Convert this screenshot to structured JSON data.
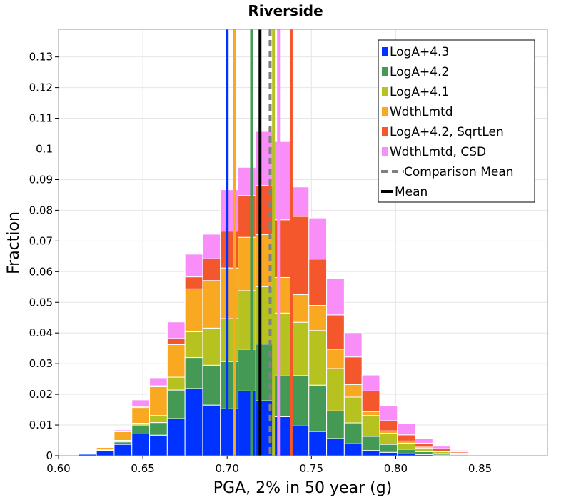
{
  "chart_data": {
    "type": "bar",
    "stacked": true,
    "title": "Riverside",
    "xlabel": "PGA, 2% in 50 year (g)",
    "ylabel": "Fraction",
    "xlim": [
      0.6,
      0.89
    ],
    "ylim": [
      0,
      0.139
    ],
    "grid": true,
    "legend_position": "top-right",
    "bin_width": 0.0105,
    "bin_starts": [
      0.6015,
      0.612,
      0.6225,
      0.633,
      0.6435,
      0.654,
      0.6645,
      0.675,
      0.6855,
      0.696,
      0.7065,
      0.717,
      0.7275,
      0.738,
      0.7485,
      0.759,
      0.7695,
      0.78,
      0.7905,
      0.801,
      0.8115,
      0.822,
      0.8325,
      0.843,
      0.8535,
      0.864,
      0.8745
    ],
    "x_ticks": [
      0.6,
      0.65,
      0.7,
      0.75,
      0.8,
      0.85
    ],
    "x_tick_labels": [
      "0.60",
      "0.65",
      "0.70",
      "0.75",
      "0.80",
      "0.85"
    ],
    "y_ticks": [
      0,
      0.01,
      0.02,
      0.03,
      0.04,
      0.05,
      0.06,
      0.07,
      0.08,
      0.09,
      0.1,
      0.11,
      0.12,
      0.13
    ],
    "y_tick_labels": [
      "0",
      "0.01",
      "0.02",
      "0.03",
      "0.04",
      "0.05",
      "0.06",
      "0.07",
      "0.08",
      "0.09",
      "0.1",
      "0.11",
      "0.12",
      "0.13"
    ],
    "series": [
      {
        "name": "LogA+4.3",
        "color": "#0033ff",
        "values": [
          0.0002,
          0.0005,
          0.0017,
          0.0037,
          0.0071,
          0.0067,
          0.0121,
          0.0219,
          0.0165,
          0.0153,
          0.0211,
          0.0179,
          0.0127,
          0.0097,
          0.0079,
          0.0056,
          0.0039,
          0.0017,
          0.0011,
          0.0006,
          0.0004,
          0.0002,
          0.0001,
          0.0001,
          0.0,
          0.0,
          0.0
        ]
      },
      {
        "name": "LogA+4.2",
        "color": "#449955",
        "values": [
          0.0001,
          0.0002,
          0.0002,
          0.0008,
          0.0029,
          0.0041,
          0.0093,
          0.0101,
          0.013,
          0.0154,
          0.0136,
          0.0185,
          0.0133,
          0.0164,
          0.0151,
          0.009,
          0.0068,
          0.0046,
          0.0026,
          0.0015,
          0.0009,
          0.0005,
          0.0003,
          0.0002,
          0.0001,
          0.0,
          0.0
        ]
      },
      {
        "name": "LogA+4.1",
        "color": "#b5c21f",
        "values": [
          0.0,
          0.0001,
          0.0003,
          0.0005,
          0.0006,
          0.0023,
          0.0042,
          0.0084,
          0.0121,
          0.014,
          0.0191,
          0.0187,
          0.0205,
          0.0174,
          0.0178,
          0.0138,
          0.0084,
          0.0068,
          0.0036,
          0.002,
          0.0011,
          0.0006,
          0.0003,
          0.0002,
          0.0001,
          0.0,
          0.0
        ]
      },
      {
        "name": "WdthLmtd",
        "color": "#f8a821",
        "values": [
          0.0,
          0.0001,
          0.0005,
          0.0028,
          0.0051,
          0.0094,
          0.0106,
          0.014,
          0.0155,
          0.0165,
          0.0174,
          0.017,
          0.0116,
          0.009,
          0.0082,
          0.0063,
          0.0041,
          0.0013,
          0.0008,
          0.0007,
          0.0004,
          0.0002,
          0.0002,
          0.0001,
          0.0,
          0.0,
          0.0
        ]
      },
      {
        "name": "LogA+4.2, SqrtLen",
        "color": "#f4572b",
        "values": [
          0.0,
          0.0,
          0.0002,
          0.0002,
          0.0003,
          0.0003,
          0.002,
          0.0039,
          0.0071,
          0.012,
          0.0136,
          0.016,
          0.0188,
          0.0255,
          0.0151,
          0.0112,
          0.009,
          0.0067,
          0.0033,
          0.002,
          0.0013,
          0.0008,
          0.0004,
          0.0002,
          0.0001,
          0.0,
          0.0
        ]
      },
      {
        "name": "WdthLmtd, CSD",
        "color": "#f98ef8",
        "values": [
          0.0,
          0.0,
          0.0002,
          0.0004,
          0.0022,
          0.0026,
          0.0054,
          0.0074,
          0.008,
          0.0135,
          0.0092,
          0.0176,
          0.0255,
          0.0096,
          0.0134,
          0.0119,
          0.0079,
          0.0052,
          0.005,
          0.0037,
          0.0014,
          0.0008,
          0.0005,
          0.0002,
          0.0001,
          0.0001,
          0.0
        ]
      }
    ],
    "vertical_lines": [
      {
        "name": "LogA+4.3",
        "x": 0.7,
        "color": "#0033ff"
      },
      {
        "name": "WdthLmtd",
        "x": 0.7045,
        "color": "#f8a821"
      },
      {
        "name": "LogA+4.2",
        "x": 0.7145,
        "color": "#449955"
      },
      {
        "name": "Mean",
        "x": 0.7195,
        "color": "#000000"
      },
      {
        "name": "Comparison Mean",
        "x": 0.7255,
        "color": "#808080",
        "dashed": true
      },
      {
        "name": "LogA+4.1",
        "x": 0.7275,
        "color": "#b5c21f"
      },
      {
        "name": "WdthLmtd, CSD",
        "x": 0.7305,
        "color": "#f98ef8"
      },
      {
        "name": "LogA+4.2, SqrtLen",
        "x": 0.738,
        "color": "#f4572b"
      }
    ],
    "legend": [
      {
        "label": "LogA+4.3",
        "kind": "box",
        "color": "#0033ff"
      },
      {
        "label": "LogA+4.2",
        "kind": "box",
        "color": "#449955"
      },
      {
        "label": "LogA+4.1",
        "kind": "box",
        "color": "#b5c21f"
      },
      {
        "label": "WdthLmtd",
        "kind": "box",
        "color": "#f8a821"
      },
      {
        "label": "LogA+4.2, SqrtLen",
        "kind": "box",
        "color": "#f4572b"
      },
      {
        "label": "WdthLmtd, CSD",
        "kind": "box",
        "color": "#f98ef8"
      },
      {
        "label": "Comparison Mean",
        "kind": "dash",
        "color": "#808080"
      },
      {
        "label": "Mean",
        "kind": "line",
        "color": "#000000"
      }
    ]
  }
}
